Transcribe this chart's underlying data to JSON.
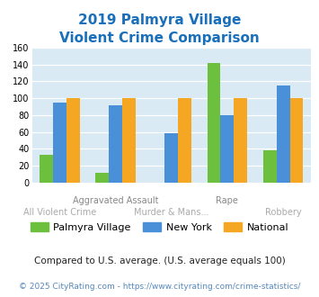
{
  "title_line1": "2019 Palmyra Village",
  "title_line2": "Violent Crime Comparison",
  "palmyra": [
    33,
    12,
    0,
    142,
    38
  ],
  "newyork": [
    95,
    92,
    59,
    80,
    115
  ],
  "national": [
    100,
    100,
    100,
    100,
    100
  ],
  "colors_palmyra": "#6dbf3e",
  "colors_newyork": "#4a90d9",
  "colors_national": "#f5a623",
  "ylim": [
    0,
    160
  ],
  "yticks": [
    0,
    20,
    40,
    60,
    80,
    100,
    120,
    140,
    160
  ],
  "title_color": "#1a6fba",
  "bg_color": "#daeaf4",
  "top_labels": [
    "",
    "Aggravated Assault",
    "",
    "Rape",
    ""
  ],
  "bot_labels": [
    "All Violent Crime",
    "",
    "Murder & Mans...",
    "",
    "Robbery"
  ],
  "top_label_color": "#888888",
  "bot_label_color": "#aaaaaa",
  "footer_text": "Compared to U.S. average. (U.S. average equals 100)",
  "copyright_text": "© 2025 CityRating.com - https://www.cityrating.com/crime-statistics/",
  "legend_labels": [
    "Palmyra Village",
    "New York",
    "National"
  ],
  "title_fontsize": 11,
  "tick_fontsize": 7,
  "xlabel_fontsize": 7,
  "legend_fontsize": 8,
  "footer_fontsize": 7.5,
  "copyright_fontsize": 6.5
}
